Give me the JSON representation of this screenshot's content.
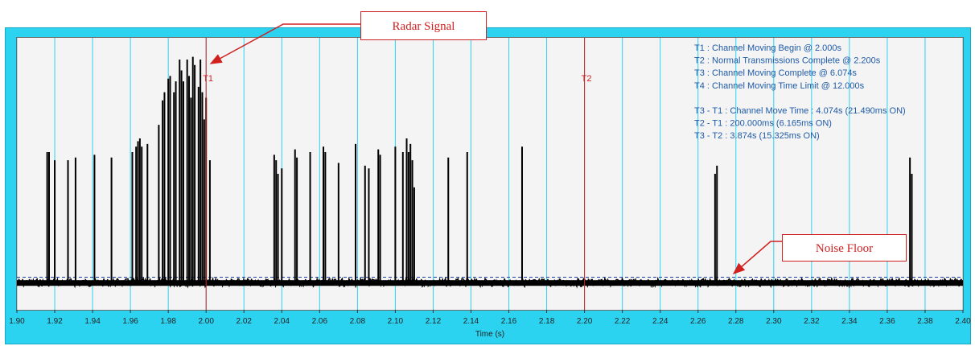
{
  "chart_data": {
    "type": "line",
    "xlabel": "Time (s)",
    "ylabel": "",
    "xlim": [
      1.9,
      2.4
    ],
    "ylim": [
      0,
      1
    ],
    "x_ticks": [
      "1.90",
      "1.92",
      "1.94",
      "1.96",
      "1.98",
      "2.00",
      "2.02",
      "2.04",
      "2.06",
      "2.08",
      "2.10",
      "2.12",
      "2.14",
      "2.16",
      "2.18",
      "2.20",
      "2.22",
      "2.24",
      "2.26",
      "2.28",
      "2.30",
      "2.32",
      "2.34",
      "2.36",
      "2.38",
      "2.40"
    ],
    "grid": true,
    "noise_floor": 0.12,
    "baseline": 0.1,
    "markers": [
      {
        "label": "T1",
        "x": 2.0,
        "color": "#d02020"
      },
      {
        "label": "T2",
        "x": 2.2,
        "color": "#d02020"
      }
    ],
    "pulses": [
      [
        1.916,
        0.58
      ],
      [
        1.917,
        0.58
      ],
      [
        1.92,
        0.55
      ],
      [
        1.927,
        0.55
      ],
      [
        1.931,
        0.56
      ],
      [
        1.941,
        0.57
      ],
      [
        1.95,
        0.56
      ],
      [
        1.961,
        0.58
      ],
      [
        1.963,
        0.6
      ],
      [
        1.964,
        0.62
      ],
      [
        1.965,
        0.63
      ],
      [
        1.966,
        0.6
      ],
      [
        1.969,
        0.61
      ],
      [
        1.975,
        0.68
      ],
      [
        1.977,
        0.77
      ],
      [
        1.978,
        0.8
      ],
      [
        1.98,
        0.85
      ],
      [
        1.981,
        0.86
      ],
      [
        1.983,
        0.8
      ],
      [
        1.984,
        0.84
      ],
      [
        1.986,
        0.92
      ],
      [
        1.987,
        0.88
      ],
      [
        1.988,
        0.84
      ],
      [
        1.99,
        0.92
      ],
      [
        1.991,
        0.86
      ],
      [
        1.992,
        0.78
      ],
      [
        1.993,
        0.93
      ],
      [
        1.994,
        0.9
      ],
      [
        1.996,
        0.82
      ],
      [
        1.997,
        0.92
      ],
      [
        1.998,
        0.8
      ],
      [
        1.999,
        0.7
      ],
      [
        2.0,
        0.78
      ],
      [
        2.002,
        0.55
      ],
      [
        2.036,
        0.57
      ],
      [
        2.037,
        0.55
      ],
      [
        2.038,
        0.5
      ],
      [
        2.04,
        0.52
      ],
      [
        2.047,
        0.59
      ],
      [
        2.048,
        0.56
      ],
      [
        2.055,
        0.58
      ],
      [
        2.062,
        0.6
      ],
      [
        2.063,
        0.58
      ],
      [
        2.07,
        0.54
      ],
      [
        2.079,
        0.61
      ],
      [
        2.084,
        0.53
      ],
      [
        2.086,
        0.52
      ],
      [
        2.091,
        0.59
      ],
      [
        2.092,
        0.57
      ],
      [
        2.1,
        0.6
      ],
      [
        2.104,
        0.58
      ],
      [
        2.106,
        0.63
      ],
      [
        2.107,
        0.58
      ],
      [
        2.108,
        0.61
      ],
      [
        2.109,
        0.55
      ],
      [
        2.11,
        0.45
      ],
      [
        2.128,
        0.56
      ],
      [
        2.138,
        0.58
      ],
      [
        2.167,
        0.6
      ],
      [
        2.269,
        0.5
      ],
      [
        2.27,
        0.53
      ],
      [
        2.372,
        0.56
      ],
      [
        2.373,
        0.5
      ]
    ],
    "annotations": [
      "T1 : Channel Moving Begin @ 2.000s",
      "T2 : Normal Transmissions Complete @ 2.200s",
      "T3 : Channel Moving Complete @ 6.074s",
      "T4 : Channel Moving Time Limit @ 12.000s",
      "",
      "T3 - T1 : Channel Move Time : 4.074s (21.490ms ON)",
      "T2 - T1 : 200.000ms (6.165ms ON)",
      "T3 - T2 : 3.874s (15.325ms ON)"
    ],
    "colors": {
      "frame": "#2bd3f0",
      "grid": "#2bd3f0",
      "signal": "#000000",
      "marker": "#d02020",
      "noise_floor": "#1a3fa0",
      "annotation_text": "#1e5aa8"
    }
  },
  "callouts": {
    "radar": {
      "label": "Radar Signal",
      "target_x": 2.0
    },
    "noise": {
      "label": "Noise Floor",
      "target_x": 2.277
    }
  }
}
